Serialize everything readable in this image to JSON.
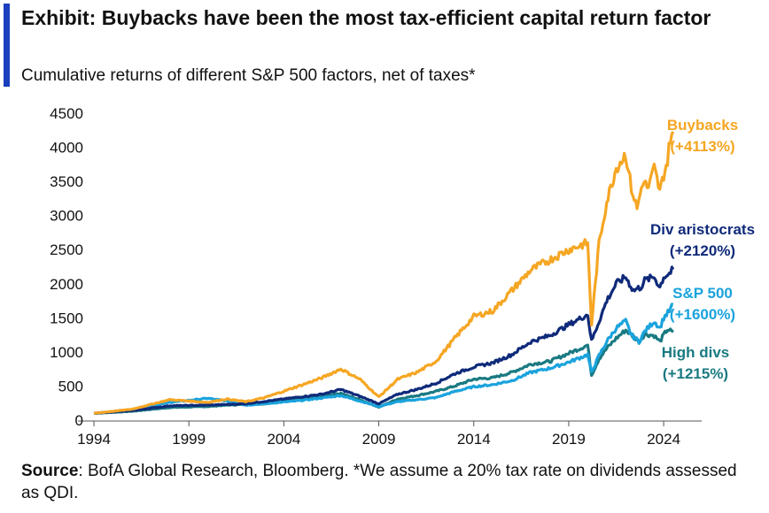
{
  "header": {
    "title": "Exhibit: Buybacks have been the most tax-efficient capital return factor",
    "subtitle": "Cumulative returns of different S&P 500 factors, net of taxes*"
  },
  "footer": {
    "source_label": "Source",
    "source_text": ": BofA Global Research, Bloomberg. *We assume a 20% tax rate on dividends assessed as QDI."
  },
  "chart_data": {
    "type": "line",
    "title": "Cumulative returns of different S&P 500 factors, net of taxes*",
    "xlabel": "",
    "ylabel": "",
    "xlim": [
      1994,
      2026
    ],
    "ylim": [
      0,
      4500
    ],
    "x_ticks": [
      1994,
      1999,
      2004,
      2009,
      2014,
      2019,
      2024
    ],
    "y_ticks": [
      0,
      500,
      1000,
      1500,
      2000,
      2500,
      3000,
      3500,
      4000,
      4500
    ],
    "grid": false,
    "series": [
      {
        "name": "High divs",
        "label": "(+1215%)",
        "color": "#1a7a82",
        "points": [
          [
            1994,
            100
          ],
          [
            1996,
            130
          ],
          [
            1998,
            185
          ],
          [
            2000,
            200
          ],
          [
            2001,
            220
          ],
          [
            2003,
            240
          ],
          [
            2005,
            320
          ],
          [
            2007,
            390
          ],
          [
            2008,
            300
          ],
          [
            2009,
            190
          ],
          [
            2010,
            310
          ],
          [
            2011,
            360
          ],
          [
            2012,
            420
          ],
          [
            2013,
            500
          ],
          [
            2014,
            600
          ],
          [
            2015,
            620
          ],
          [
            2016,
            700
          ],
          [
            2017,
            820
          ],
          [
            2018,
            860
          ],
          [
            2019,
            980
          ],
          [
            2020,
            1100
          ],
          [
            2020.2,
            660
          ],
          [
            2020.6,
            900
          ],
          [
            2021,
            1050
          ],
          [
            2021.5,
            1200
          ],
          [
            2022,
            1320
          ],
          [
            2022.3,
            1250
          ],
          [
            2022.7,
            1150
          ],
          [
            2023,
            1260
          ],
          [
            2023.5,
            1240
          ],
          [
            2023.8,
            1150
          ],
          [
            2024,
            1250
          ],
          [
            2024.2,
            1330
          ],
          [
            2024.5,
            1290
          ]
        ]
      },
      {
        "name": "S&P 500",
        "label": "(+1600%)",
        "color": "#1aa3dd",
        "points": [
          [
            1994,
            100
          ],
          [
            1996,
            150
          ],
          [
            1998,
            260
          ],
          [
            2000,
            320
          ],
          [
            2001,
            280
          ],
          [
            2002,
            220
          ],
          [
            2003,
            240
          ],
          [
            2005,
            290
          ],
          [
            2007,
            360
          ],
          [
            2008,
            280
          ],
          [
            2009,
            200
          ],
          [
            2010,
            270
          ],
          [
            2011,
            300
          ],
          [
            2012,
            330
          ],
          [
            2013,
            420
          ],
          [
            2014,
            490
          ],
          [
            2015,
            520
          ],
          [
            2016,
            580
          ],
          [
            2017,
            700
          ],
          [
            2018,
            760
          ],
          [
            2019,
            850
          ],
          [
            2020,
            960
          ],
          [
            2020.2,
            700
          ],
          [
            2020.6,
            950
          ],
          [
            2021,
            1150
          ],
          [
            2021.5,
            1350
          ],
          [
            2022,
            1450
          ],
          [
            2022.3,
            1250
          ],
          [
            2022.7,
            1150
          ],
          [
            2023,
            1300
          ],
          [
            2023.5,
            1450
          ],
          [
            2023.8,
            1350
          ],
          [
            2024,
            1500
          ],
          [
            2024.3,
            1600
          ],
          [
            2024.5,
            1700
          ]
        ]
      },
      {
        "name": "Div aristocrats",
        "label": "(+2120%)",
        "color": "#0f2a7a",
        "points": [
          [
            1994,
            100
          ],
          [
            1996,
            140
          ],
          [
            1998,
            210
          ],
          [
            2000,
            220
          ],
          [
            2002,
            240
          ],
          [
            2004,
            310
          ],
          [
            2006,
            380
          ],
          [
            2007,
            450
          ],
          [
            2008,
            350
          ],
          [
            2009,
            240
          ],
          [
            2010,
            380
          ],
          [
            2011,
            450
          ],
          [
            2012,
            540
          ],
          [
            2013,
            680
          ],
          [
            2014,
            780
          ],
          [
            2015,
            840
          ],
          [
            2016,
            960
          ],
          [
            2017,
            1150
          ],
          [
            2018,
            1240
          ],
          [
            2019,
            1400
          ],
          [
            2020,
            1550
          ],
          [
            2020.2,
            1160
          ],
          [
            2020.6,
            1450
          ],
          [
            2021,
            1750
          ],
          [
            2021.5,
            2000
          ],
          [
            2022,
            2100
          ],
          [
            2022.4,
            1900
          ],
          [
            2022.8,
            1950
          ],
          [
            2023,
            2050
          ],
          [
            2023.5,
            2100
          ],
          [
            2023.8,
            1950
          ],
          [
            2024,
            2100
          ],
          [
            2024.3,
            2150
          ],
          [
            2024.5,
            2210
          ]
        ]
      },
      {
        "name": "Buybacks",
        "label": "(+4113%)",
        "color": "#f5a623",
        "points": [
          [
            1994,
            100
          ],
          [
            1996,
            160
          ],
          [
            1998,
            300
          ],
          [
            2000,
            260
          ],
          [
            2001,
            310
          ],
          [
            2002,
            270
          ],
          [
            2003,
            330
          ],
          [
            2005,
            520
          ],
          [
            2006,
            620
          ],
          [
            2007,
            750
          ],
          [
            2008,
            600
          ],
          [
            2009,
            340
          ],
          [
            2010,
            600
          ],
          [
            2011,
            700
          ],
          [
            2012,
            860
          ],
          [
            2013,
            1200
          ],
          [
            2014,
            1520
          ],
          [
            2015,
            1600
          ],
          [
            2016,
            1900
          ],
          [
            2017,
            2200
          ],
          [
            2018,
            2350
          ],
          [
            2019,
            2500
          ],
          [
            2020,
            2600
          ],
          [
            2020.2,
            1400
          ],
          [
            2020.6,
            2600
          ],
          [
            2021,
            3200
          ],
          [
            2021.5,
            3700
          ],
          [
            2022,
            3900
          ],
          [
            2022.3,
            3400
          ],
          [
            2022.6,
            3100
          ],
          [
            2022.9,
            3500
          ],
          [
            2023.2,
            3400
          ],
          [
            2023.5,
            3700
          ],
          [
            2023.8,
            3350
          ],
          [
            2024,
            3600
          ],
          [
            2024.2,
            3800
          ],
          [
            2024.35,
            4150
          ],
          [
            2024.5,
            4230
          ]
        ]
      }
    ]
  }
}
